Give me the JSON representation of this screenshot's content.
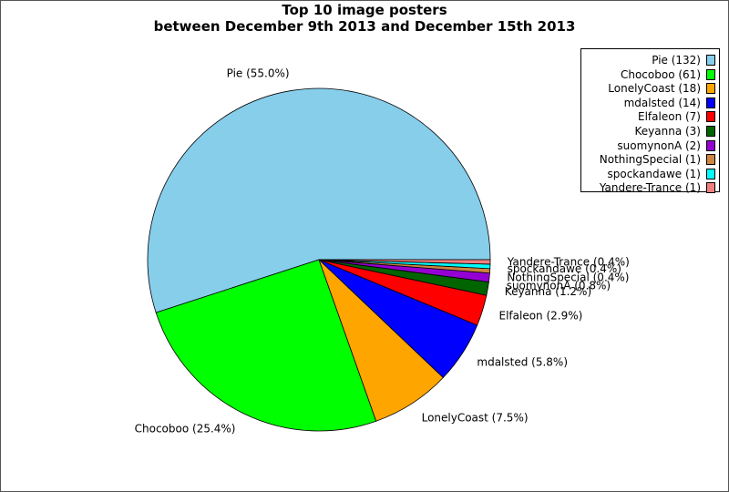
{
  "chart_data": {
    "type": "pie",
    "title": "Top 10 image posters",
    "subtitle": "between December 9th 2013 and December 15th 2013",
    "slices": [
      {
        "name": "Pie",
        "count": 132,
        "percent": 55.0,
        "color": "#87ceeb",
        "legend": "Pie (132)",
        "label": "Pie (55.0%)"
      },
      {
        "name": "Chocoboo",
        "count": 61,
        "percent": 25.4,
        "color": "#00ff00",
        "legend": "Chocoboo (61)",
        "label": "Chocoboo (25.4%)"
      },
      {
        "name": "LonelyCoast",
        "count": 18,
        "percent": 7.5,
        "color": "#ffa500",
        "legend": "LonelyCoast (18)",
        "label": "LonelyCoast (7.5%)"
      },
      {
        "name": "mdalsted",
        "count": 14,
        "percent": 5.8,
        "color": "#0000ff",
        "legend": "mdalsted (14)",
        "label": "mdalsted (5.8%)"
      },
      {
        "name": "Elfaleon",
        "count": 7,
        "percent": 2.9,
        "color": "#ff0000",
        "legend": "Elfaleon (7)",
        "label": "Elfaleon (2.9%)"
      },
      {
        "name": "Keyanna",
        "count": 3,
        "percent": 1.2,
        "color": "#006400",
        "legend": "Keyanna (3)",
        "label": "Keyanna (1.2%)"
      },
      {
        "name": "suomynonA",
        "count": 2,
        "percent": 0.8,
        "color": "#9400d3",
        "legend": "suomynonA (2)",
        "label": "suomynonA (0.8%)"
      },
      {
        "name": "NothingSpecial",
        "count": 1,
        "percent": 0.4,
        "color": "#cd853f",
        "legend": "NothingSpecial (1)",
        "label": "NothingSpecial (0.4%)"
      },
      {
        "name": "spockandawe",
        "count": 1,
        "percent": 0.4,
        "color": "#00ffff",
        "legend": "spockandawe (1)",
        "label": "spockandawe (0.4%)"
      },
      {
        "name": "Yandere-Trance",
        "count": 1,
        "percent": 0.4,
        "color": "#f08080",
        "legend": "Yandere-Trance (1)",
        "label": "Yandere-Trance (0.4%)"
      }
    ],
    "legend_position": "top-right"
  }
}
